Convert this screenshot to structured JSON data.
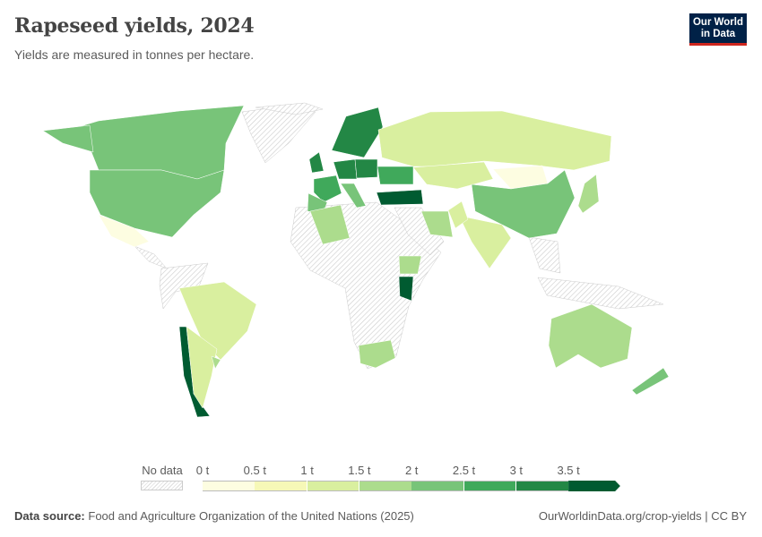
{
  "header": {
    "title": "Rapeseed yields, 2024",
    "subtitle": "Yields are measured in tonnes per hectare."
  },
  "logo": {
    "line1": "Our World",
    "line2": "in Data"
  },
  "legend": {
    "no_data_label": "No data",
    "no_data_color": "#dddddd",
    "bins": [
      {
        "label": "0 t",
        "color": "#fdfde1"
      },
      {
        "label": "0.5 t",
        "color": "#f6f8b7"
      },
      {
        "label": "1 t",
        "color": "#d9ef9f"
      },
      {
        "label": "1.5 t",
        "color": "#acdc8d"
      },
      {
        "label": "2 t",
        "color": "#78c479"
      },
      {
        "label": "2.5 t",
        "color": "#40a95b"
      },
      {
        "label": "3 t",
        "color": "#238745"
      },
      {
        "label": "3.5 t",
        "color": "#005b31"
      }
    ]
  },
  "map_data": {
    "unit": "t",
    "countries": {
      "Canada": 2.3,
      "United States": 2.2,
      "Mexico": 0.4,
      "Brazil": 1.2,
      "Argentina": 1.3,
      "Chile": 3.8,
      "Uruguay": 1.6,
      "United Kingdom": 3.2,
      "France": 2.9,
      "Spain": 2.1,
      "Germany": 3.4,
      "Poland": 3.1,
      "Scandinavia": 3.2,
      "Italy": 2.4,
      "Ukraine": 2.7,
      "Turkey": 3.6,
      "Russia": 1.4,
      "Kazakhstan": 1.2,
      "Mongolia": 0.3,
      "China": 2.1,
      "India": 1.3,
      "Iran": 1.7,
      "Algeria": 1.6,
      "Ethiopia": 1.8,
      "Kenya": 3.7,
      "South Africa": 1.7,
      "Australia": 1.6,
      "New Zealand": 2.3,
      "Japan": 1.7,
      "Pakistan": 1.1
    }
  },
  "footer": {
    "source_label": "Data source:",
    "source_text": "Food and Agriculture Organization of the United Nations (2025)",
    "url": "OurWorldinData.org/crop-yields | CC BY"
  }
}
